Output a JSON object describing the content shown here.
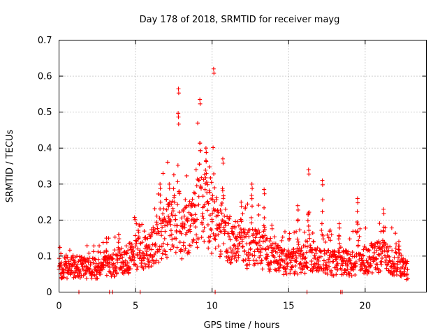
{
  "chart_data": {
    "type": "scatter",
    "title": "Day 178 of 2018, SRMTID for receiver mayg",
    "xlabel": "GPS time / hours",
    "ylabel": "SRMTID / TECUs",
    "xlim": [
      0,
      24
    ],
    "ylim": [
      0,
      0.7
    ],
    "xticks": [
      0,
      5,
      10,
      15,
      20
    ],
    "xtick_labels": [
      "0",
      "5",
      "10",
      "15",
      "20"
    ],
    "yticks": [
      0,
      0.1,
      0.2,
      0.3,
      0.4,
      0.5,
      0.6,
      0.7
    ],
    "ytick_labels": [
      "0",
      "0.1",
      "0.2",
      "0.3",
      "0.4",
      "0.5",
      "0.6",
      "0.7"
    ],
    "grid": true,
    "marker": "+",
    "color": "#ff0000",
    "series": [
      {
        "name": "SRMTID",
        "envelope": {
          "description": "approximate typical level and spike maxima of the point cloud (hours, TECU)",
          "base": [
            [
              0,
              0.065
            ],
            [
              1,
              0.07
            ],
            [
              2,
              0.065
            ],
            [
              3,
              0.07
            ],
            [
              4,
              0.085
            ],
            [
              5,
              0.1
            ],
            [
              6,
              0.13
            ],
            [
              7,
              0.17
            ],
            [
              7.5,
              0.2
            ],
            [
              8,
              0.16
            ],
            [
              8.5,
              0.17
            ],
            [
              9,
              0.22
            ],
            [
              9.5,
              0.25
            ],
            [
              10,
              0.19
            ],
            [
              10.5,
              0.18
            ],
            [
              11,
              0.15
            ],
            [
              12,
              0.12
            ],
            [
              13,
              0.12
            ],
            [
              14,
              0.1
            ],
            [
              15,
              0.08
            ],
            [
              16,
              0.09
            ],
            [
              17,
              0.09
            ],
            [
              18,
              0.08
            ],
            [
              19,
              0.08
            ],
            [
              20,
              0.09
            ],
            [
              21,
              0.1
            ],
            [
              22,
              0.08
            ],
            [
              22.8,
              0.06
            ]
          ],
          "peaks": [
            [
              3.1,
              0.15
            ],
            [
              3.9,
              0.16
            ],
            [
              6.6,
              0.3
            ],
            [
              7.2,
              0.3
            ],
            [
              7.8,
              0.565
            ],
            [
              9.2,
              0.535
            ],
            [
              9.6,
              0.4
            ],
            [
              10.1,
              0.62
            ],
            [
              10.7,
              0.37
            ],
            [
              11.9,
              0.25
            ],
            [
              12.6,
              0.3
            ],
            [
              13.4,
              0.285
            ],
            [
              15.6,
              0.24
            ],
            [
              16.3,
              0.34
            ],
            [
              17.2,
              0.31
            ],
            [
              18.3,
              0.19
            ],
            [
              19.5,
              0.26
            ],
            [
              21.2,
              0.23
            ],
            [
              22.2,
              0.14
            ]
          ]
        }
      }
    ]
  }
}
